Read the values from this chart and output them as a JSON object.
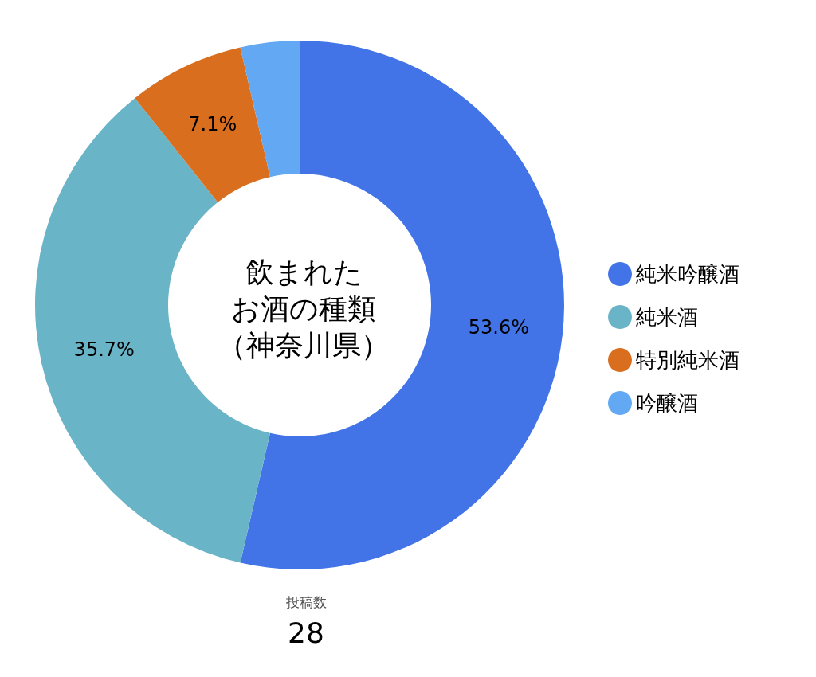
{
  "chart_data": {
    "type": "donut",
    "title": "飲まれたお酒の種類",
    "subtitle": "（神奈川県）",
    "categories": [
      "純米吟醸酒",
      "純米酒",
      "特別純米酒",
      "吟醸酒"
    ],
    "values": [
      53.6,
      35.7,
      7.1,
      3.6
    ],
    "colors": [
      "#4274e8",
      "#6ab4c8",
      "#d86e1e",
      "#62a8f2"
    ],
    "value_labels": [
      "53.6%",
      "35.7%",
      "7.1%",
      null
    ],
    "legend": "right",
    "annotations": [
      "投稿数",
      "28"
    ]
  }
}
